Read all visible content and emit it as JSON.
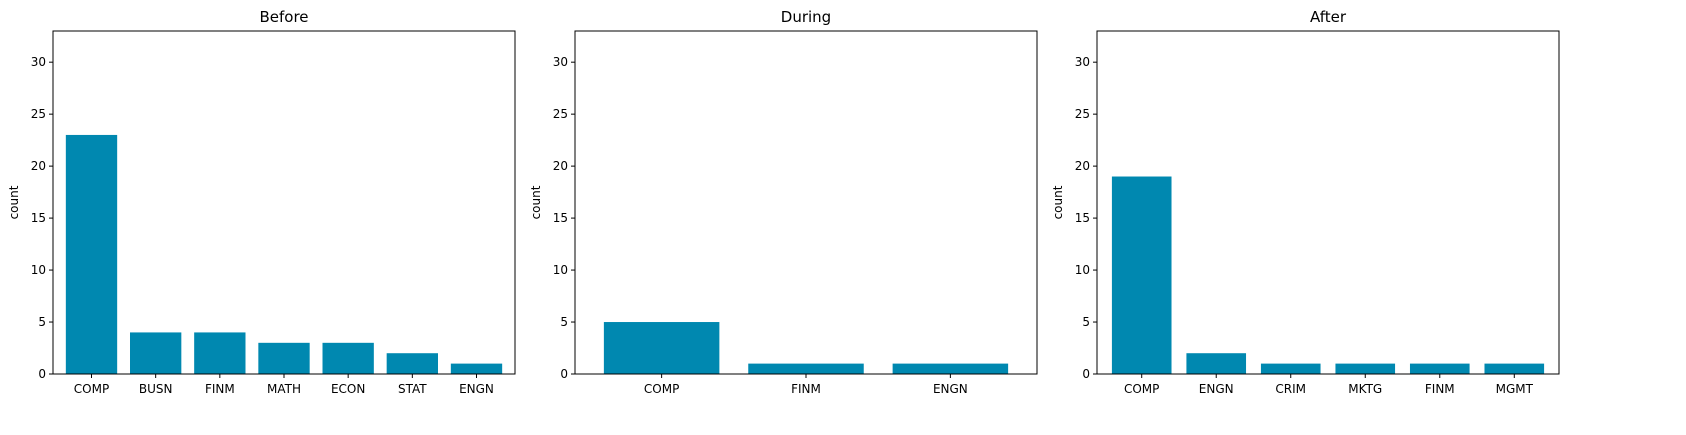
{
  "chart_data": [
    {
      "type": "bar",
      "title": "Before",
      "ylabel": "count",
      "categories": [
        "COMP",
        "BUSN",
        "FINM",
        "MATH",
        "ECON",
        "STAT",
        "ENGN"
      ],
      "values": [
        23,
        4,
        4,
        3,
        3,
        2,
        1
      ],
      "ylim": [
        0,
        33
      ],
      "yticks": [
        0,
        5,
        10,
        15,
        20,
        25,
        30
      ],
      "color": "#0088b0",
      "grid": false
    },
    {
      "type": "bar",
      "title": "During",
      "ylabel": "count",
      "categories": [
        "COMP",
        "FINM",
        "ENGN"
      ],
      "values": [
        5,
        1,
        1
      ],
      "ylim": [
        0,
        33
      ],
      "yticks": [
        0,
        5,
        10,
        15,
        20,
        25,
        30
      ],
      "color": "#0088b0",
      "grid": false
    },
    {
      "type": "bar",
      "title": "After",
      "ylabel": "count",
      "categories": [
        "COMP",
        "ENGN",
        "CRIM",
        "MKTG",
        "FINM",
        "MGMT"
      ],
      "values": [
        19,
        2,
        1,
        1,
        1,
        1
      ],
      "ylim": [
        0,
        33
      ],
      "yticks": [
        0,
        5,
        10,
        15,
        20,
        25,
        30
      ],
      "color": "#0088b0",
      "grid": false
    }
  ]
}
